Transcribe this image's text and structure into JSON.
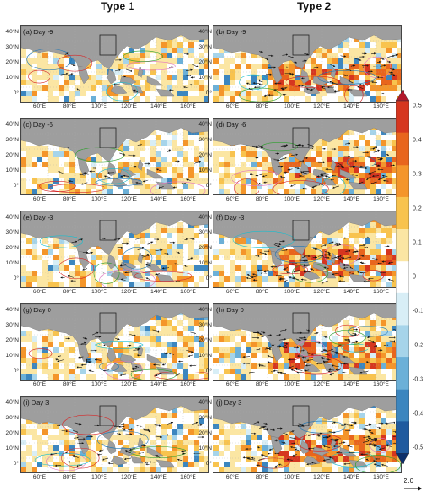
{
  "columns": [
    "Type 1",
    "Type 2"
  ],
  "panels": [
    {
      "label": "(a) Day -9"
    },
    {
      "label": "(b) Day -9"
    },
    {
      "label": "(c) Day -6"
    },
    {
      "label": "(d) Day -6"
    },
    {
      "label": "(e) Day -3"
    },
    {
      "label": "(f) Day -3"
    },
    {
      "label": "(g) Day 0"
    },
    {
      "label": "(h) Day 0"
    },
    {
      "label": "(i) Day 3"
    },
    {
      "label": "(j) Day 3"
    }
  ],
  "lat_ticks": [
    "40°N",
    "30°N",
    "20°N",
    "10°N",
    "0°"
  ],
  "lon_ticks": [
    "60°E",
    "80°E",
    "100°E",
    "120°E",
    "140°E",
    "160°E"
  ],
  "colorbar": {
    "ticks": [
      "0.5",
      "0.4",
      "0.3",
      "0.2",
      "0.1",
      "0",
      "-0.1",
      "-0.2",
      "-0.3",
      "-0.4",
      "-0.5"
    ],
    "colors": [
      "#b2182b",
      "#d6361f",
      "#e8651d",
      "#f4952a",
      "#f8c34e",
      "#fbe6a3",
      "#ffffff",
      "#d8eef6",
      "#a6d4ea",
      "#6bb0d8",
      "#3c86bf",
      "#1f5a9f",
      "#0c2f6b"
    ]
  },
  "reference_vector": "2.0"
}
